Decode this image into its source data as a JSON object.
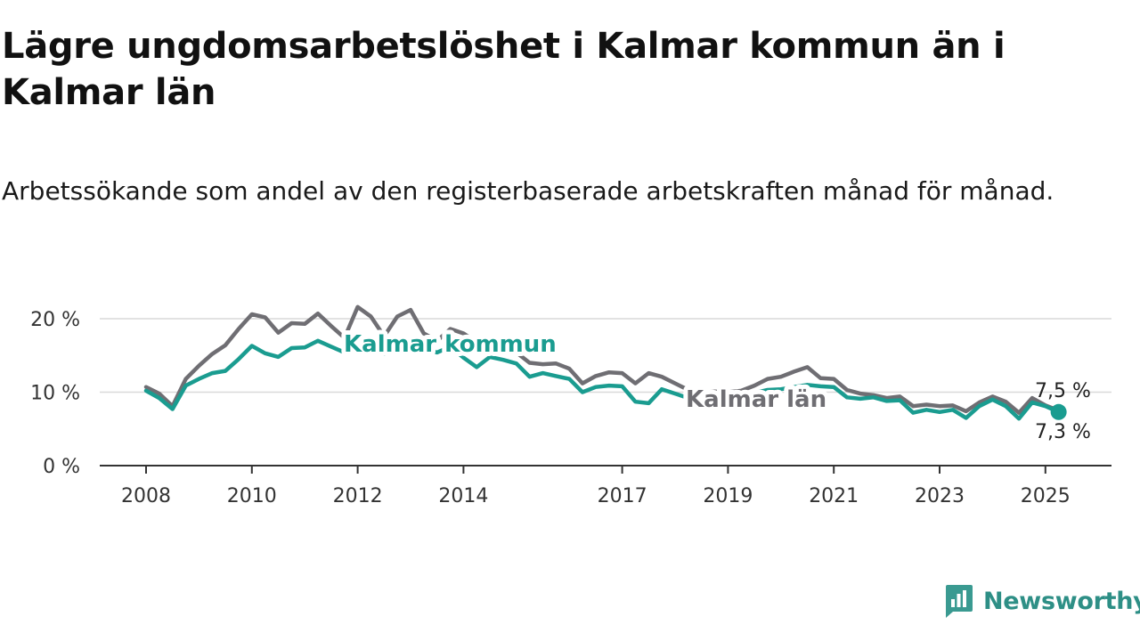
{
  "title": "Lägre ungdomsarbetslöshet i Kalmar kommun än i Kalmar län",
  "subtitle": "Arbetssökande som andel av den registerbaserade arbetskraften månad för månad.",
  "brand": {
    "name": "Newsworthy",
    "icon": "bar-chart-badge-icon"
  },
  "chart_data": {
    "type": "line",
    "x_ticks": [
      "2008",
      "2010",
      "2012",
      "2014",
      "2017",
      "2019",
      "2021",
      "2023",
      "2025"
    ],
    "y_ticks": [
      "0 %",
      "10 %",
      "20 %"
    ],
    "ylim": [
      0,
      20
    ],
    "grid": true,
    "series": [
      {
        "name": "Kalmar län",
        "color": "#6f6e73",
        "end_label": "7,5 %",
        "points": [
          [
            "2008-01",
            10.7
          ],
          [
            "2008-04",
            9.8
          ],
          [
            "2008-07",
            8.1
          ],
          [
            "2008-10",
            11.8
          ],
          [
            "2009-01",
            13.6
          ],
          [
            "2009-04",
            15.2
          ],
          [
            "2009-07",
            16.4
          ],
          [
            "2009-10",
            18.6
          ],
          [
            "2010-01",
            20.6
          ],
          [
            "2010-04",
            20.2
          ],
          [
            "2010-07",
            18.1
          ],
          [
            "2010-10",
            19.4
          ],
          [
            "2011-01",
            19.3
          ],
          [
            "2011-04",
            20.7
          ],
          [
            "2011-07",
            19.0
          ],
          [
            "2011-10",
            17.4
          ],
          [
            "2012-01",
            21.6
          ],
          [
            "2012-04",
            20.3
          ],
          [
            "2012-07",
            17.6
          ],
          [
            "2012-10",
            20.3
          ],
          [
            "2013-01",
            21.2
          ],
          [
            "2013-04",
            18.0
          ],
          [
            "2013-07",
            17.0
          ],
          [
            "2013-10",
            18.6
          ],
          [
            "2014-01",
            18.0
          ],
          [
            "2014-04",
            16.8
          ],
          [
            "2014-07",
            16.5
          ],
          [
            "2014-10",
            16.1
          ],
          [
            "2015-01",
            15.4
          ],
          [
            "2015-04",
            14.0
          ],
          [
            "2015-07",
            13.8
          ],
          [
            "2015-10",
            13.9
          ],
          [
            "2016-01",
            13.2
          ],
          [
            "2016-04",
            11.2
          ],
          [
            "2016-07",
            12.2
          ],
          [
            "2016-10",
            12.7
          ],
          [
            "2017-01",
            12.6
          ],
          [
            "2017-04",
            11.2
          ],
          [
            "2017-07",
            12.6
          ],
          [
            "2017-10",
            12.1
          ],
          [
            "2018-01",
            11.2
          ],
          [
            "2018-04",
            10.3
          ],
          [
            "2018-07",
            9.9
          ],
          [
            "2018-10",
            10.1
          ],
          [
            "2019-01",
            10.0
          ],
          [
            "2019-04",
            10.2
          ],
          [
            "2019-07",
            10.9
          ],
          [
            "2019-10",
            11.8
          ],
          [
            "2020-01",
            12.1
          ],
          [
            "2020-04",
            12.8
          ],
          [
            "2020-07",
            13.4
          ],
          [
            "2020-10",
            11.9
          ],
          [
            "2021-01",
            11.8
          ],
          [
            "2021-04",
            10.3
          ],
          [
            "2021-07",
            9.8
          ],
          [
            "2021-10",
            9.6
          ],
          [
            "2022-01",
            9.2
          ],
          [
            "2022-04",
            9.4
          ],
          [
            "2022-07",
            8.1
          ],
          [
            "2022-10",
            8.3
          ],
          [
            "2023-01",
            8.1
          ],
          [
            "2023-04",
            8.2
          ],
          [
            "2023-07",
            7.4
          ],
          [
            "2023-10",
            8.6
          ],
          [
            "2024-01",
            9.4
          ],
          [
            "2024-04",
            8.7
          ],
          [
            "2024-07",
            7.2
          ],
          [
            "2024-10",
            9.2
          ],
          [
            "2025-01",
            8.2
          ],
          [
            "2025-04",
            7.5
          ]
        ]
      },
      {
        "name": "Kalmar kommun",
        "color": "#1a9c90",
        "end_label": "7,3 %",
        "points": [
          [
            "2008-01",
            10.2
          ],
          [
            "2008-04",
            9.2
          ],
          [
            "2008-07",
            7.7
          ],
          [
            "2008-10",
            10.9
          ],
          [
            "2009-01",
            11.8
          ],
          [
            "2009-04",
            12.6
          ],
          [
            "2009-07",
            12.9
          ],
          [
            "2009-10",
            14.5
          ],
          [
            "2010-01",
            16.3
          ],
          [
            "2010-04",
            15.3
          ],
          [
            "2010-07",
            14.8
          ],
          [
            "2010-10",
            16.0
          ],
          [
            "2011-01",
            16.1
          ],
          [
            "2011-04",
            17.0
          ],
          [
            "2011-07",
            16.2
          ],
          [
            "2011-10",
            15.4
          ],
          [
            "2012-01",
            17.3
          ],
          [
            "2012-04",
            16.8
          ],
          [
            "2012-07",
            15.2
          ],
          [
            "2012-10",
            16.4
          ],
          [
            "2013-01",
            16.9
          ],
          [
            "2013-04",
            15.9
          ],
          [
            "2013-07",
            15.4
          ],
          [
            "2013-10",
            16.2
          ],
          [
            "2014-01",
            14.7
          ],
          [
            "2014-04",
            13.4
          ],
          [
            "2014-07",
            14.8
          ],
          [
            "2014-10",
            14.4
          ],
          [
            "2015-01",
            13.9
          ],
          [
            "2015-04",
            12.1
          ],
          [
            "2015-07",
            12.6
          ],
          [
            "2015-10",
            12.2
          ],
          [
            "2016-01",
            11.8
          ],
          [
            "2016-04",
            10.0
          ],
          [
            "2016-07",
            10.7
          ],
          [
            "2016-10",
            10.9
          ],
          [
            "2017-01",
            10.8
          ],
          [
            "2017-04",
            8.7
          ],
          [
            "2017-07",
            8.5
          ],
          [
            "2017-10",
            10.4
          ],
          [
            "2018-01",
            9.8
          ],
          [
            "2018-04",
            9.2
          ],
          [
            "2018-07",
            8.9
          ],
          [
            "2018-10",
            8.6
          ],
          [
            "2019-01",
            8.9
          ],
          [
            "2019-04",
            9.4
          ],
          [
            "2019-07",
            9.9
          ],
          [
            "2019-10",
            10.3
          ],
          [
            "2020-01",
            10.4
          ],
          [
            "2020-04",
            10.7
          ],
          [
            "2020-07",
            11.0
          ],
          [
            "2020-10",
            10.8
          ],
          [
            "2021-01",
            10.7
          ],
          [
            "2021-04",
            9.3
          ],
          [
            "2021-07",
            9.1
          ],
          [
            "2021-10",
            9.3
          ],
          [
            "2022-01",
            8.8
          ],
          [
            "2022-04",
            8.9
          ],
          [
            "2022-07",
            7.2
          ],
          [
            "2022-10",
            7.6
          ],
          [
            "2023-01",
            7.3
          ],
          [
            "2023-04",
            7.6
          ],
          [
            "2023-07",
            6.5
          ],
          [
            "2023-10",
            8.1
          ],
          [
            "2024-01",
            9.0
          ],
          [
            "2024-04",
            8.1
          ],
          [
            "2024-07",
            6.4
          ],
          [
            "2024-10",
            8.6
          ],
          [
            "2025-01",
            8.1
          ],
          [
            "2025-04",
            7.3
          ]
        ]
      }
    ]
  }
}
